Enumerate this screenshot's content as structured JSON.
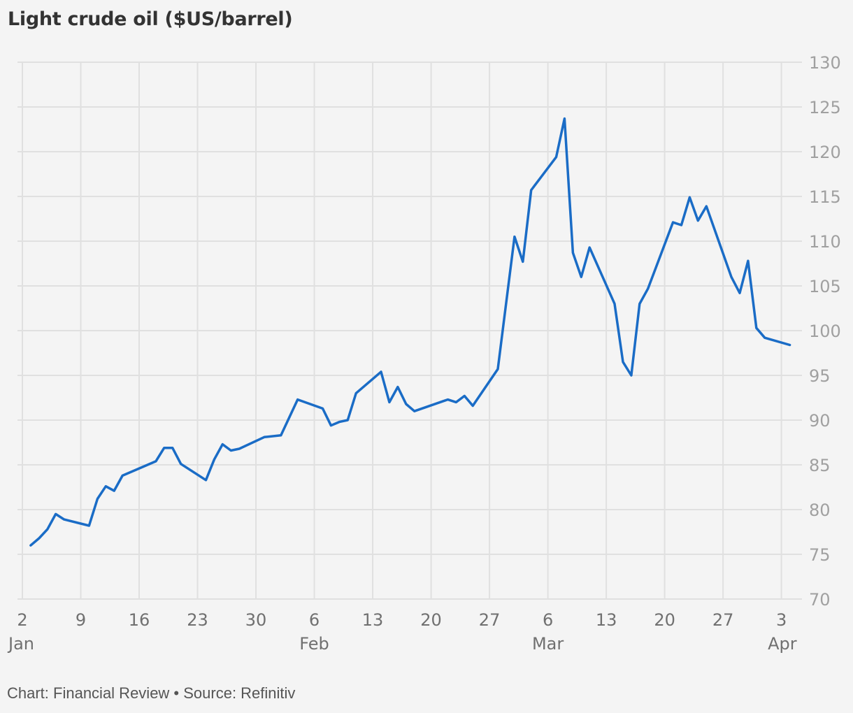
{
  "header": {
    "title": "Light crude oil ($US/barrel)"
  },
  "footer": {
    "credit": "Chart: Financial Review • Source: Refinitiv"
  },
  "colors": {
    "background": "#f4f4f4",
    "grid": "#e0e0e0",
    "line": "#1a6cc6",
    "title": "#333333",
    "y_tick_text": "#a0a0a0",
    "x_tick_text": "#707070"
  },
  "chart_data": {
    "type": "line",
    "title": "Light crude oil ($US/barrel)",
    "xlabel": "",
    "ylabel": "",
    "ylim": [
      70,
      130
    ],
    "grid": true,
    "y_axis_position": "right",
    "y_ticks": [
      70,
      75,
      80,
      85,
      90,
      95,
      100,
      105,
      110,
      115,
      120,
      125,
      130
    ],
    "x_ticks": [
      {
        "day": 0,
        "label": "2",
        "month": "Jan"
      },
      {
        "day": 7,
        "label": "9",
        "month": ""
      },
      {
        "day": 14,
        "label": "16",
        "month": ""
      },
      {
        "day": 21,
        "label": "23",
        "month": ""
      },
      {
        "day": 28,
        "label": "30",
        "month": ""
      },
      {
        "day": 35,
        "label": "6",
        "month": "Feb"
      },
      {
        "day": 42,
        "label": "13",
        "month": ""
      },
      {
        "day": 49,
        "label": "20",
        "month": ""
      },
      {
        "day": 56,
        "label": "27",
        "month": ""
      },
      {
        "day": 63,
        "label": "6",
        "month": "Mar"
      },
      {
        "day": 70,
        "label": "13",
        "month": ""
      },
      {
        "day": 77,
        "label": "20",
        "month": ""
      },
      {
        "day": 84,
        "label": "27",
        "month": ""
      },
      {
        "day": 91,
        "label": "3",
        "month": "Apr"
      }
    ],
    "x_range_days": [
      0,
      93.5
    ],
    "series": [
      {
        "name": "Light crude oil",
        "x": [
          "Jan 3",
          "Jan 4",
          "Jan 5",
          "Jan 6",
          "Jan 7",
          "Jan 10",
          "Jan 11",
          "Jan 12",
          "Jan 13",
          "Jan 14",
          "Jan 18",
          "Jan 19",
          "Jan 20",
          "Jan 21",
          "Jan 24",
          "Jan 25",
          "Jan 26",
          "Jan 27",
          "Jan 28",
          "Jan 31",
          "Feb 2",
          "Feb 4",
          "Feb 7",
          "Feb 8",
          "Feb 9",
          "Feb 10",
          "Feb 11",
          "Feb 14",
          "Feb 15",
          "Feb 16",
          "Feb 17",
          "Feb 18",
          "Feb 22",
          "Feb 23",
          "Feb 24",
          "Feb 25",
          "Feb 28",
          "Mar 2",
          "Mar 3",
          "Mar 4",
          "Mar 7",
          "Mar 8",
          "Mar 9",
          "Mar 10",
          "Mar 11",
          "Mar 14",
          "Mar 15",
          "Mar 16",
          "Mar 17",
          "Mar 18",
          "Mar 21",
          "Mar 22",
          "Mar 23",
          "Mar 24",
          "Mar 25",
          "Mar 28",
          "Mar 29",
          "Mar 30",
          "Mar 31",
          "Apr 1",
          "Apr 4"
        ],
        "day": [
          1,
          2,
          3,
          4,
          5,
          8,
          9,
          10,
          11,
          12,
          16,
          17,
          18,
          19,
          22,
          23,
          24,
          25,
          26,
          29,
          31,
          33,
          36,
          37,
          38,
          39,
          40,
          43,
          44,
          45,
          46,
          47,
          51,
          52,
          53,
          54,
          57,
          59,
          60,
          61,
          64,
          65,
          66,
          67,
          68,
          71,
          72,
          73,
          74,
          75,
          78,
          79,
          80,
          81,
          82,
          85,
          86,
          87,
          88,
          89,
          92
        ],
        "values": [
          76.0,
          76.8,
          77.8,
          79.5,
          78.9,
          78.2,
          81.2,
          82.6,
          82.1,
          83.8,
          85.4,
          86.9,
          86.9,
          85.1,
          83.3,
          85.6,
          87.3,
          86.6,
          86.8,
          88.1,
          88.3,
          92.3,
          91.3,
          89.4,
          89.8,
          90.0,
          93.0,
          95.4,
          92.0,
          93.7,
          91.8,
          91.0,
          92.3,
          92.0,
          92.7,
          91.6,
          95.7,
          110.5,
          107.7,
          115.7,
          119.4,
          123.7,
          108.7,
          106.0,
          109.3,
          103.0,
          96.5,
          95.0,
          103.0,
          104.7,
          112.1,
          111.8,
          114.9,
          112.3,
          113.9,
          106.0,
          104.2,
          107.8,
          100.3,
          99.2,
          98.4
        ]
      }
    ]
  }
}
